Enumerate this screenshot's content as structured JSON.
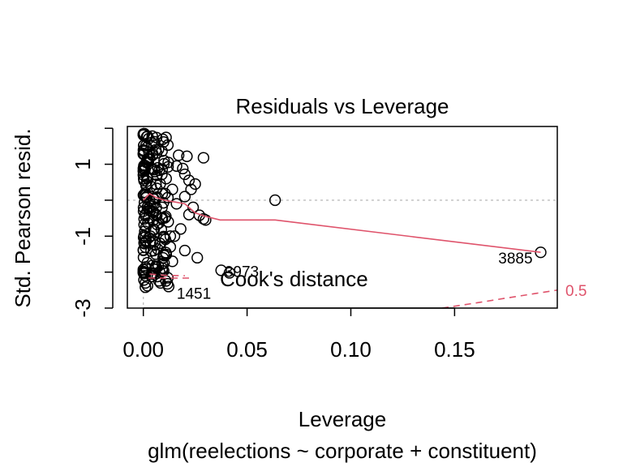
{
  "chart_data": {
    "type": "scatter",
    "title": "Residuals vs Leverage",
    "xlabel": "Leverage",
    "ylabel": "Std. Pearson resid.",
    "subtitle": "glm(reelections ~ corporate + constituent)",
    "xlim": [
      -0.0077,
      0.1995
    ],
    "ylim": [
      -3.0,
      2.05
    ],
    "x_ticks": [
      0.0,
      0.05,
      0.1,
      0.15
    ],
    "x_tick_labels": [
      "0.00",
      "0.05",
      "0.10",
      "0.15"
    ],
    "y_ticks": [
      -3,
      -1,
      1
    ],
    "y_tick_labels": [
      "-3",
      "-1",
      "1"
    ],
    "grid": false,
    "reference_lines": {
      "zero_line": {
        "y": 0,
        "color": "#BEBEBE",
        "style": "dotted"
      },
      "x_zero_line": {
        "x": 0,
        "color": "#BEBEBE",
        "style": "dotted"
      }
    },
    "point_color": "#000000",
    "smooth_color": "#DF536B",
    "cooks_color": "#DF536B",
    "legend": {
      "label": "Cook's distance",
      "position": "bottom-left"
    },
    "cooks_contour_label": "0.5",
    "labelled_points": [
      {
        "label": "3885",
        "x": 0.1915,
        "y": -1.45
      },
      {
        "label": "3973",
        "x": 0.0415,
        "y": -2.02
      },
      {
        "label": "1451",
        "x": 0.0122,
        "y": -2.4
      }
    ],
    "points": [
      {
        "x": 0.017,
        "y": 1.25
      },
      {
        "x": 0.021,
        "y": 1.22
      },
      {
        "x": 0.029,
        "y": 1.18
      },
      {
        "x": 0.012,
        "y": 1.05
      },
      {
        "x": 0.016,
        "y": 0.95
      },
      {
        "x": 0.019,
        "y": 0.88
      },
      {
        "x": 0.02,
        "y": 0.72
      },
      {
        "x": 0.022,
        "y": 0.55
      },
      {
        "x": 0.025,
        "y": 0.45
      },
      {
        "x": 0.023,
        "y": 0.3
      },
      {
        "x": 0.02,
        "y": 0.1
      },
      {
        "x": 0.024,
        "y": -0.2
      },
      {
        "x": 0.027,
        "y": -0.42
      },
      {
        "x": 0.029,
        "y": -0.52
      },
      {
        "x": 0.03,
        "y": -0.55
      },
      {
        "x": 0.022,
        "y": -0.4
      },
      {
        "x": 0.018,
        "y": -0.8
      },
      {
        "x": 0.015,
        "y": -1.0
      },
      {
        "x": 0.013,
        "y": -1.3
      },
      {
        "x": 0.02,
        "y": -1.4
      },
      {
        "x": 0.026,
        "y": -1.6
      },
      {
        "x": 0.014,
        "y": -1.7
      },
      {
        "x": 0.01,
        "y": -1.75
      },
      {
        "x": 0.0635,
        "y": 0.0
      },
      {
        "x": 0.1915,
        "y": -1.45
      },
      {
        "x": 0.0375,
        "y": -1.95
      },
      {
        "x": 0.0415,
        "y": -2.02
      },
      {
        "x": 0.0122,
        "y": -2.4
      },
      {
        "x": 0.011,
        "y": 0.6
      },
      {
        "x": 0.014,
        "y": 0.3
      },
      {
        "x": 0.009,
        "y": -0.2
      },
      {
        "x": 0.012,
        "y": -0.6
      },
      {
        "x": 0.008,
        "y": -1.2
      },
      {
        "x": 0.016,
        "y": -0.1
      },
      {
        "x": 0.01,
        "y": 1.1
      },
      {
        "x": 0.007,
        "y": 0.9
      },
      {
        "x": 0.013,
        "y": -1.0
      },
      {
        "x": 0.006,
        "y": -1.5
      },
      {
        "x": 0.004,
        "y": -2.05
      },
      {
        "x": 0.001,
        "y": -2.1
      },
      {
        "x": 0.001,
        "y": -2.3
      },
      {
        "x": 0.001,
        "y": -2.42
      },
      {
        "x": 0.002,
        "y": -2.38
      },
      {
        "x": 0.0005,
        "y": 1.85
      },
      {
        "x": 0.002,
        "y": 1.78
      },
      {
        "x": 0.004,
        "y": 1.6
      },
      {
        "x": 0.006,
        "y": 1.4
      },
      {
        "x": 0.003,
        "y": 1.2
      }
    ],
    "smooth_line": [
      {
        "x": 0.0,
        "y": 0.0
      },
      {
        "x": 0.003,
        "y": 0.18
      },
      {
        "x": 0.006,
        "y": 0.08
      },
      {
        "x": 0.01,
        "y": 0.0
      },
      {
        "x": 0.015,
        "y": -0.05
      },
      {
        "x": 0.02,
        "y": -0.1
      },
      {
        "x": 0.025,
        "y": -0.35
      },
      {
        "x": 0.03,
        "y": -0.45
      },
      {
        "x": 0.037,
        "y": -0.55
      },
      {
        "x": 0.0635,
        "y": -0.55
      },
      {
        "x": 0.1915,
        "y": -1.45
      }
    ],
    "cooks_line_lower": [
      {
        "x": 0.003,
        "y": -2.05
      },
      {
        "x": 0.01,
        "y": -2.09
      },
      {
        "x": 0.02,
        "y": -2.1
      }
    ],
    "cooks_contour_05": [
      {
        "x": 0.144,
        "y": -3.0
      },
      {
        "x": 0.16,
        "y": -2.86
      },
      {
        "x": 0.175,
        "y": -2.72
      },
      {
        "x": 0.1995,
        "y": -2.5
      }
    ]
  }
}
